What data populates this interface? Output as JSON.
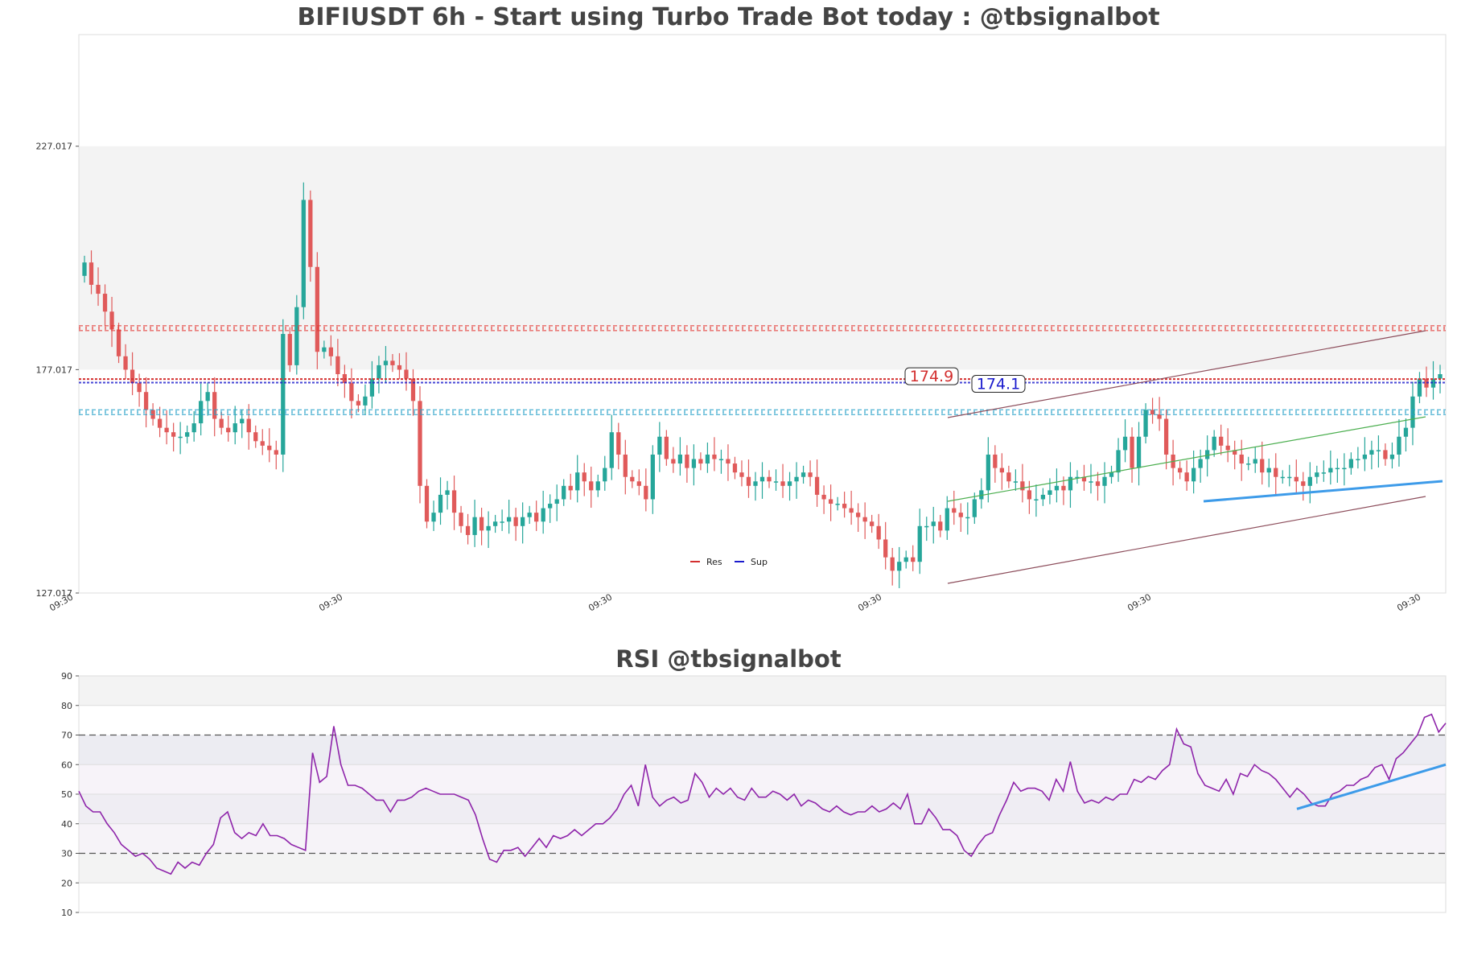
{
  "titles": {
    "main": "BIFIUSDT 6h - Start using Turbo Trade Bot today : @tbsignalbot",
    "rsi": "RSI @tbsignalbot"
  },
  "colors": {
    "up": "#26a69a",
    "down": "#e05a5a",
    "res": "#d32f2f",
    "sup": "#1a1acd",
    "res_zone": "#e53935",
    "sup_zone": "#26a0c8",
    "rsi_line": "#8e24aa",
    "trend_blue": "#3d9be9",
    "trend_green": "#4caf50",
    "trend_brown": "#8d4e5c"
  },
  "chart_data": [
    {
      "type": "candlestick",
      "title": "BIFIUSDT 6h - Start using Turbo Trade Bot today : @tbsignalbot",
      "y_ticks": [
        "227.017",
        "177.017",
        "127.017"
      ],
      "ylim": [
        127.017,
        252
      ],
      "x_tick_labels": [
        "09:30",
        "09:30",
        "09:30",
        "09:30",
        "09:30",
        "09:30"
      ],
      "levels": {
        "resistance": {
          "label": "174.9",
          "value": 174.9
        },
        "support": {
          "label": "174.1",
          "value": 174.1
        },
        "res_zone": 186.3,
        "sup_zone": 167.5
      },
      "legend": [
        {
          "name": "Res",
          "color": "#d32f2f"
        },
        {
          "name": "Sup",
          "color": "#1a1acd"
        }
      ],
      "series_close": [
        201,
        196,
        194,
        190,
        186,
        180,
        177,
        174,
        172,
        168,
        166,
        164,
        163,
        162,
        162,
        163,
        165,
        170,
        172,
        166,
        164,
        163,
        165,
        166,
        163,
        161,
        160,
        159,
        158,
        185,
        178,
        191,
        215,
        200,
        181,
        182,
        180,
        176,
        174,
        170,
        169,
        171,
        175,
        178,
        179,
        178,
        177,
        175,
        170,
        151,
        143,
        145,
        149,
        150,
        145,
        142,
        140,
        144,
        141,
        142,
        143,
        143,
        144,
        142,
        144,
        145,
        143,
        146,
        147,
        148,
        151,
        150,
        154,
        152,
        150,
        152,
        155,
        163,
        158,
        153,
        152,
        151,
        148,
        158,
        162,
        157,
        156,
        158,
        155,
        157,
        156,
        158,
        157,
        157,
        156,
        154,
        153,
        151,
        152,
        153,
        152,
        152,
        151,
        152,
        153,
        154,
        153,
        149,
        148,
        147,
        147,
        146,
        145,
        144,
        143,
        142,
        139,
        135,
        132,
        134,
        135,
        134,
        142,
        142,
        143,
        141,
        146,
        145,
        144,
        144,
        148,
        150,
        158,
        155,
        154,
        152,
        152,
        150,
        148,
        148,
        149,
        150,
        151,
        150,
        153,
        153,
        152,
        152,
        151,
        153,
        154,
        159,
        162,
        155,
        162,
        168,
        167,
        166,
        158,
        155,
        154,
        152,
        155,
        157,
        159,
        162,
        160,
        159,
        158,
        156,
        156,
        157,
        154,
        155,
        153,
        153,
        153,
        152,
        151,
        153,
        154,
        154,
        155,
        155,
        155,
        157,
        157,
        158,
        159,
        159,
        157,
        158,
        162,
        164,
        171,
        175,
        173,
        175,
        176
      ]
    },
    {
      "type": "line",
      "title": "RSI @tbsignalbot",
      "y_ticks": [
        90,
        80,
        70,
        60,
        50,
        40,
        30,
        20,
        10
      ],
      "ylim": [
        10,
        90
      ],
      "reference_lines": [
        70,
        30
      ],
      "series": [
        {
          "values": [
            51,
            46,
            44,
            44,
            40,
            37,
            33,
            31,
            29,
            30,
            28,
            25,
            24,
            23,
            27,
            25,
            27,
            26,
            30,
            33,
            42,
            44,
            37,
            35,
            37,
            36,
            40,
            36,
            36,
            35,
            33,
            32,
            31,
            64,
            54,
            56,
            73,
            60,
            53,
            53,
            52,
            50,
            48,
            48,
            44,
            48,
            48,
            49,
            51,
            52,
            51,
            50,
            50,
            50,
            49,
            48,
            43,
            35,
            28,
            27,
            31,
            31,
            32,
            29,
            32,
            35,
            32,
            36,
            35,
            36,
            38,
            36,
            38,
            40,
            40,
            42,
            45,
            50,
            53,
            46,
            60,
            49,
            46,
            48,
            49,
            47,
            48,
            57,
            54,
            49,
            52,
            50,
            52,
            49,
            48,
            52,
            49,
            49,
            51,
            50,
            48,
            50,
            46,
            48,
            47,
            45,
            44,
            46,
            44,
            43,
            44,
            44,
            46,
            44,
            45,
            47,
            45,
            50,
            40,
            40,
            45,
            42,
            38,
            38,
            36,
            31,
            29,
            33,
            36,
            37,
            43,
            48,
            54,
            51,
            52,
            52,
            51,
            48,
            55,
            51,
            61,
            51,
            47,
            48,
            47,
            49,
            48,
            50,
            50,
            55,
            54,
            56,
            55,
            58,
            60,
            72,
            67,
            66,
            57,
            53,
            52,
            51,
            55,
            50,
            57,
            56,
            60,
            58,
            57,
            55,
            52,
            49,
            52,
            50,
            47,
            46,
            46,
            50,
            51,
            53,
            53,
            55,
            56,
            59,
            60,
            55,
            62,
            64,
            67,
            70,
            76,
            77,
            71,
            74
          ]
        }
      ],
      "trendline": [
        45,
        60
      ]
    }
  ]
}
